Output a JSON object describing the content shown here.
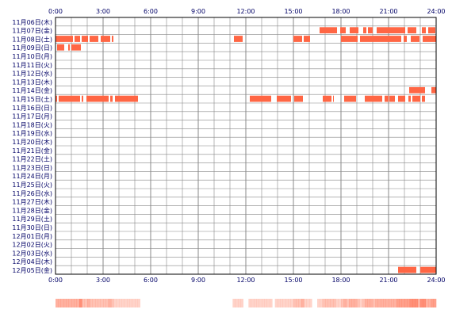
{
  "chart_data": {
    "type": "heatmap",
    "title": "",
    "xlabel": "",
    "ylabel": "",
    "x_ticks": [
      "0:00",
      "3:00",
      "6:00",
      "9:00",
      "12:00",
      "15:00",
      "18:00",
      "21:00",
      "24:00"
    ],
    "x_range_hours": [
      0,
      24
    ],
    "grid": true,
    "colors": {
      "active": "#ff6644",
      "grid": "#888888",
      "frame": "#000000",
      "text": "#000066",
      "background": "#ffffff"
    },
    "rows": [
      {
        "label": "11月06日(木)",
        "active": []
      },
      {
        "label": "11月07日(金)",
        "active": [
          [
            16.65,
            17.75
          ],
          [
            17.95,
            18.3
          ],
          [
            18.55,
            19.1
          ],
          [
            19.4,
            19.6
          ],
          [
            19.7,
            20.0
          ],
          [
            20.25,
            22.05
          ],
          [
            22.2,
            22.75
          ],
          [
            23.1,
            23.35
          ],
          [
            23.5,
            23.95
          ]
        ]
      },
      {
        "label": "11月08日(土)",
        "active": [
          [
            0.0,
            1.1
          ],
          [
            1.2,
            1.55
          ],
          [
            1.65,
            2.05
          ],
          [
            2.15,
            2.7
          ],
          [
            2.85,
            3.45
          ],
          [
            3.55,
            3.65
          ],
          [
            11.25,
            11.8
          ],
          [
            15.0,
            15.55
          ],
          [
            15.65,
            16.05
          ],
          [
            18.0,
            19.05
          ],
          [
            19.2,
            21.8
          ],
          [
            21.95,
            22.15
          ],
          [
            22.4,
            22.95
          ],
          [
            23.15,
            24.0
          ]
        ]
      },
      {
        "label": "11月09日(日)",
        "active": [
          [
            0.1,
            0.55
          ],
          [
            0.8,
            0.9
          ],
          [
            1.0,
            1.6
          ]
        ]
      },
      {
        "label": "11月10日(月)",
        "active": []
      },
      {
        "label": "11月11日(火)",
        "active": []
      },
      {
        "label": "11月12日(水)",
        "active": []
      },
      {
        "label": "11月13日(木)",
        "active": []
      },
      {
        "label": "11月14日(金)",
        "active": [
          [
            22.3,
            23.3
          ],
          [
            23.7,
            24.0
          ]
        ]
      },
      {
        "label": "11月15日(土)",
        "active": [
          [
            0.0,
            0.1
          ],
          [
            0.2,
            1.55
          ],
          [
            1.65,
            1.75
          ],
          [
            1.95,
            3.35
          ],
          [
            3.45,
            3.6
          ],
          [
            3.75,
            5.2
          ],
          [
            12.25,
            13.6
          ],
          [
            13.95,
            14.85
          ],
          [
            15.05,
            15.6
          ],
          [
            16.85,
            17.4
          ],
          [
            17.5,
            17.55
          ],
          [
            18.2,
            18.95
          ],
          [
            19.5,
            20.6
          ],
          [
            20.75,
            21.0
          ],
          [
            21.05,
            21.4
          ],
          [
            21.6,
            22.05
          ],
          [
            22.25,
            22.4
          ],
          [
            22.5,
            23.0
          ],
          [
            23.1,
            23.3
          ]
        ]
      },
      {
        "label": "11月16日(日)",
        "active": []
      },
      {
        "label": "11月17日(月)",
        "active": []
      },
      {
        "label": "11月18日(火)",
        "active": []
      },
      {
        "label": "11月19日(水)",
        "active": []
      },
      {
        "label": "11月20日(木)",
        "active": []
      },
      {
        "label": "11月21日(金)",
        "active": []
      },
      {
        "label": "11月22日(土)",
        "active": []
      },
      {
        "label": "11月23日(日)",
        "active": []
      },
      {
        "label": "11月24日(月)",
        "active": []
      },
      {
        "label": "11月25日(火)",
        "active": []
      },
      {
        "label": "11月26日(水)",
        "active": []
      },
      {
        "label": "11月27日(木)",
        "active": []
      },
      {
        "label": "11月28日(金)",
        "active": []
      },
      {
        "label": "11月29日(土)",
        "active": []
      },
      {
        "label": "11月30日(日)",
        "active": []
      },
      {
        "label": "12月01日(月)",
        "active": []
      },
      {
        "label": "12月02日(火)",
        "active": []
      },
      {
        "label": "12月03日(水)",
        "active": []
      },
      {
        "label": "12月04日(木)",
        "active": []
      },
      {
        "label": "12月05日(金)",
        "active": [
          [
            21.6,
            22.75
          ],
          [
            23.0,
            24.0
          ]
        ]
      }
    ],
    "summary_strip": {
      "description_values": "activity density per 10-minute slot (0-1)",
      "hours_with_activity": [
        [
          0,
          5.2
        ],
        [
          11.25,
          24
        ]
      ]
    }
  }
}
